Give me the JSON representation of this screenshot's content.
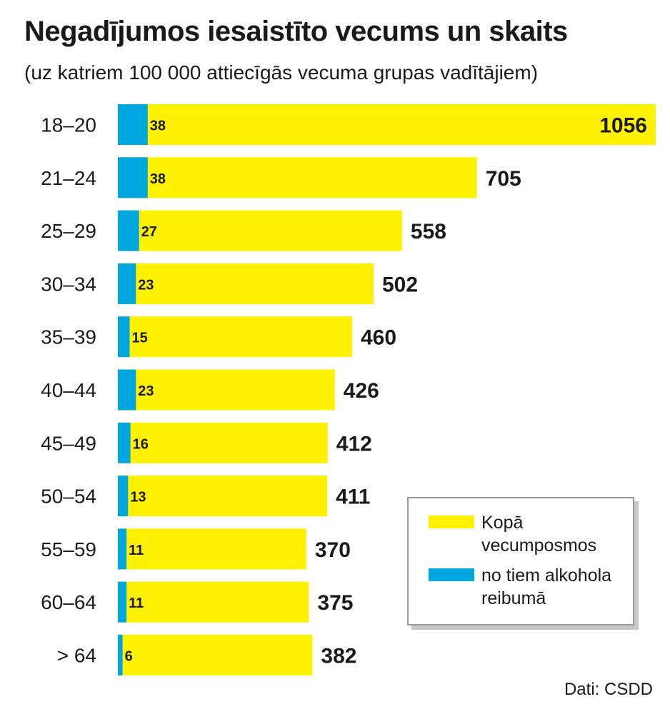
{
  "title": "Negadījumos iesaistīto vecums un skaits",
  "subtitle": "(uz katriem 100 000 attiecīgās vecuma grupas vadītājiem)",
  "source": "Dati: CSDD",
  "legend": {
    "total_label": "Kopā vecumposmos",
    "alcohol_label": "no tiem alkohola reibumā"
  },
  "colors": {
    "total": "#fff200",
    "alcohol": "#00a6e0"
  },
  "chart_data": {
    "type": "bar",
    "orientation": "horizontal",
    "stacked": "overlay",
    "title": "Negadījumos iesaistīto vecums un skaits",
    "subtitle": "(uz katriem 100 000 attiecīgās vecuma grupas vadītājiem)",
    "categories": [
      "18–20",
      "21–24",
      "25–29",
      "30–34",
      "35–39",
      "40–44",
      "45–49",
      "50–54",
      "55–59",
      "60–64",
      "> 64"
    ],
    "series": [
      {
        "name": "Kopā vecumposmos",
        "values": [
          1056,
          705,
          558,
          502,
          460,
          426,
          412,
          411,
          370,
          375,
          382
        ]
      },
      {
        "name": "no tiem alkohola reibumā",
        "values": [
          38,
          38,
          27,
          23,
          15,
          23,
          16,
          13,
          11,
          11,
          6
        ]
      }
    ],
    "xlim": [
      0,
      1056
    ],
    "grid": false,
    "legend_position": "bottom-right"
  }
}
